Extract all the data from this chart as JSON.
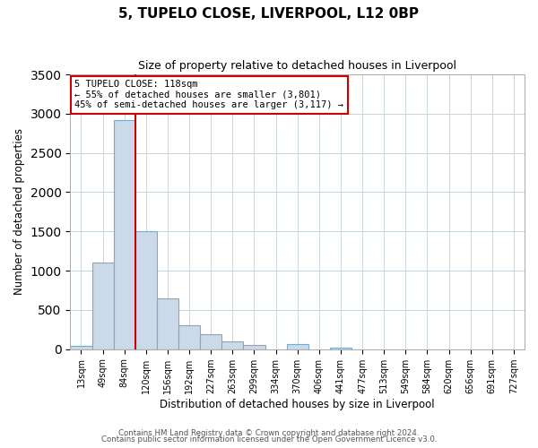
{
  "title": "5, TUPELO CLOSE, LIVERPOOL, L12 0BP",
  "subtitle": "Size of property relative to detached houses in Liverpool",
  "xlabel": "Distribution of detached houses by size in Liverpool",
  "ylabel": "Number of detached properties",
  "bar_color": "#ccd9e8",
  "bar_edge_color": "#7aaac8",
  "bin_labels": [
    "13sqm",
    "49sqm",
    "84sqm",
    "120sqm",
    "156sqm",
    "192sqm",
    "227sqm",
    "263sqm",
    "299sqm",
    "334sqm",
    "370sqm",
    "406sqm",
    "441sqm",
    "477sqm",
    "513sqm",
    "549sqm",
    "584sqm",
    "620sqm",
    "656sqm",
    "691sqm",
    "727sqm"
  ],
  "bin_values": [
    40,
    1100,
    2920,
    1500,
    650,
    310,
    195,
    95,
    50,
    0,
    60,
    0,
    15,
    0,
    0,
    0,
    0,
    0,
    0,
    0,
    0
  ],
  "ylim": [
    0,
    3500
  ],
  "yticks": [
    0,
    500,
    1000,
    1500,
    2000,
    2500,
    3000,
    3500
  ],
  "vline_color": "#cc0000",
  "annotation_line1": "5 TUPELO CLOSE: 118sqm",
  "annotation_line2": "← 55% of detached houses are smaller (3,801)",
  "annotation_line3": "45% of semi-detached houses are larger (3,117) →",
  "annotation_box_color": "#ffffff",
  "annotation_box_edge": "#cc0000",
  "footer1": "Contains HM Land Registry data © Crown copyright and database right 2024.",
  "footer2": "Contains public sector information licensed under the Open Government Licence v3.0.",
  "plot_background": "#ffffff"
}
